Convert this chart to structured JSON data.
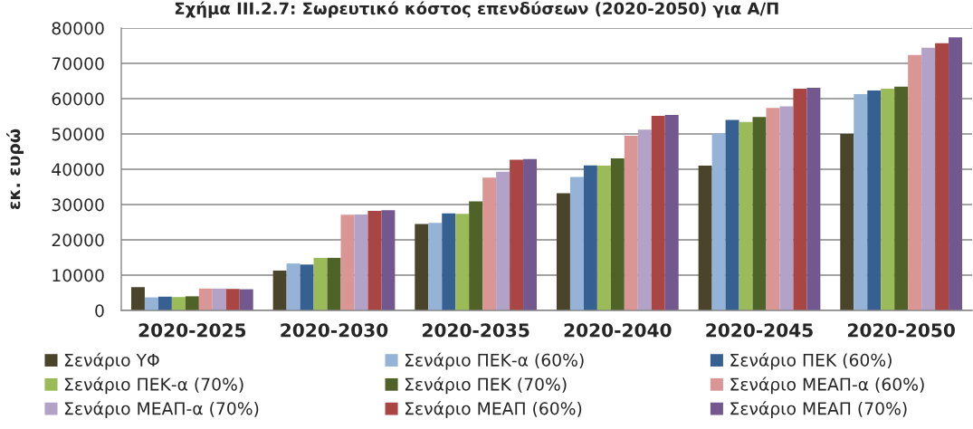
{
  "chart_data": {
    "type": "bar",
    "title": "Σχήμα ΙΙΙ.2.7: Σωρευτικό κόστος επενδύσεων (2020-2050) για Α/Π",
    "ylabel": "εκ. ευρώ",
    "categories": [
      "2020-2025",
      "2020-2030",
      "2020-2035",
      "2020-2040",
      "2020-2045",
      "2020-2050"
    ],
    "ylim": [
      0,
      80000
    ],
    "yticks": [
      0,
      10000,
      20000,
      30000,
      40000,
      50000,
      60000,
      70000,
      80000
    ],
    "grid": "y",
    "legend": "bottom",
    "series": [
      {
        "name": "Σενάριο ΥΦ",
        "color": "#4a452a",
        "values": [
          6600,
          11300,
          24500,
          33200,
          41000,
          50000
        ]
      },
      {
        "name": "Σενάριο ΠΕΚ-α (60%)",
        "color": "#95b3d7",
        "values": [
          3700,
          13300,
          24800,
          37800,
          50200,
          61300
        ]
      },
      {
        "name": "Σενάριο ΠΕΚ (60%)",
        "color": "#376092",
        "values": [
          3900,
          13000,
          27500,
          41100,
          54000,
          62300
        ]
      },
      {
        "name": "Σενάριο ΠΕΚ-α (70%)",
        "color": "#9bbb59",
        "values": [
          3800,
          14900,
          27400,
          41000,
          53400,
          62800
        ]
      },
      {
        "name": "Σενάριο ΠΕΚ (70%)",
        "color": "#4f6228",
        "values": [
          4000,
          14900,
          30900,
          43100,
          54800,
          63400
        ]
      },
      {
        "name": "Σενάριο ΜΕΑΠ-α (60%)",
        "color": "#d99694",
        "values": [
          6200,
          27100,
          37600,
          49500,
          57400,
          72400
        ]
      },
      {
        "name": "Σενάριο ΜΕΑΠ-α (70%)",
        "color": "#b3a2c7",
        "values": [
          6200,
          27200,
          39300,
          51200,
          57800,
          74400
        ]
      },
      {
        "name": "Σενάριο ΜΕΑΠ (60%)",
        "color": "#a94643",
        "values": [
          6100,
          28200,
          42700,
          55100,
          62800,
          75700
        ]
      },
      {
        "name": "Σενάριο ΜΕΑΠ (70%)",
        "color": "#72588f",
        "values": [
          6000,
          28400,
          42900,
          55400,
          63100,
          77400
        ]
      }
    ]
  }
}
